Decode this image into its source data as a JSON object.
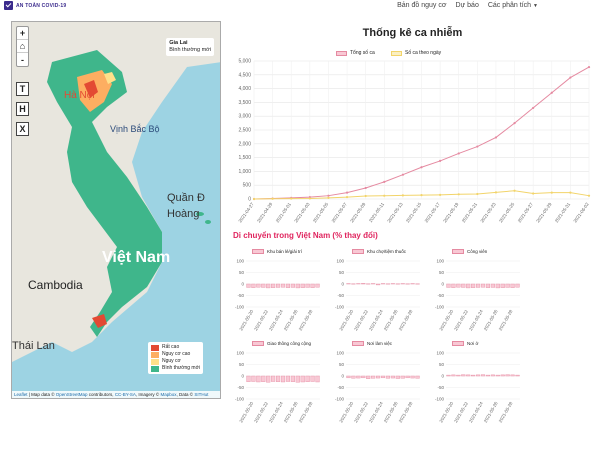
{
  "navbar": {
    "brand": "AN TOÀN COVID-19",
    "links": [
      "Bản đồ nguy cơ",
      "Dự báo",
      "Các phân tích"
    ]
  },
  "map": {
    "zoom_in": "+",
    "home": "⌂",
    "zoom_out": "-",
    "buttons": [
      "T",
      "H",
      "X"
    ],
    "info_title": "Gia Lai",
    "info_status": "Bình thường mới",
    "labels": {
      "hanoi": "Hà Nội",
      "gulf": "Vịnh Bắc Bộ",
      "paracel": "Quần Đ",
      "paracel2": "Hoàng",
      "vietnam": "Việt Nam",
      "cambodia": "Cambodia",
      "thailand": "Thái Lan"
    },
    "legend": [
      {
        "label": "Rất cao",
        "color": "#e34a33"
      },
      {
        "label": "Nguy cơ cao",
        "color": "#fdae61"
      },
      {
        "label": "Nguy cơ",
        "color": "#ffe08a"
      },
      {
        "label": "Bình thường mới",
        "color": "#3fb68b"
      }
    ],
    "attribution": {
      "leaflet": "Leaflet",
      "t1": " | Map data © ",
      "osm": "OpenStreetMap",
      "t2": " contributors, ",
      "cc": "CC-BY-SA",
      "t3": ", Imagery © ",
      "mapbox": "Mapbox",
      "t4": ", Data © ",
      "src": "SITHut"
    }
  },
  "main_title": "Thống kê ca nhiễm",
  "mobility_title": "Di chuyển trong Việt Nam (% thay đổi)",
  "chart_data": [
    {
      "type": "line",
      "title": "Thống kê ca nhiễm",
      "x": [
        "2021-04-27",
        "2021-04-29",
        "2021-05-01",
        "2021-05-03",
        "2021-05-05",
        "2021-05-07",
        "2021-05-09",
        "2021-05-11",
        "2021-05-13",
        "2021-05-15",
        "2021-05-17",
        "2021-05-19",
        "2021-05-21",
        "2021-05-23",
        "2021-05-25",
        "2021-05-27",
        "2021-05-29",
        "2021-05-31",
        "2021-06-02"
      ],
      "series": [
        {
          "name": "Tổng số ca",
          "color": "#e58aa1",
          "values": [
            0,
            20,
            40,
            70,
            120,
            230,
            400,
            620,
            880,
            1150,
            1380,
            1650,
            1900,
            2230,
            2750,
            3300,
            3850,
            4400,
            4780
          ]
        },
        {
          "name": "Số ca theo ngày",
          "color": "#f2d46a",
          "values": [
            0,
            10,
            15,
            20,
            40,
            70,
            110,
            120,
            130,
            140,
            150,
            170,
            180,
            240,
            300,
            200,
            230,
            230,
            120
          ]
        }
      ],
      "yticks": [
        "5,000",
        "4,500",
        "4,000",
        "3,500",
        "3,000",
        "2,500",
        "2,000",
        "1,500",
        "1,000",
        "500",
        "0"
      ],
      "xticks": [
        "2021-04-27",
        "2021-04-29",
        "2021-05-01",
        "2021-05-03",
        "2021-05-05",
        "2021-05-07",
        "2021-05-09",
        "2021-05-11",
        "2021-05-13",
        "2021-05-15",
        "2021-05-17",
        "2021-05-19",
        "2021-05-21",
        "2021-05-23",
        "2021-05-25",
        "2021-05-27",
        "2021-05-29",
        "2021-05-31",
        "2021-06-02"
      ],
      "ylim": [
        0,
        5000
      ]
    },
    {
      "type": "bar",
      "title": "Khu bán lẻ/giải trí",
      "xticks": [
        "2021-05-20",
        "2021-05-22",
        "2021-05-24",
        "2021-05-26",
        "2021-05-28"
      ],
      "yticks": [
        "100",
        "50",
        "0",
        "-50",
        "-100"
      ],
      "ylim": [
        -100,
        100
      ],
      "values": [
        -15,
        -16,
        -14,
        -15,
        -17,
        -16,
        -15,
        -14,
        -16,
        -15,
        -17,
        -16,
        -15,
        -16,
        -14
      ]
    },
    {
      "type": "bar",
      "title": "Khu chợ/tiệm thuốc",
      "xticks": [
        "2021-05-20",
        "2021-05-22",
        "2021-05-24",
        "2021-05-26",
        "2021-05-28"
      ],
      "yticks": [
        "100",
        "50",
        "0",
        "-50",
        "-100"
      ],
      "ylim": [
        -100,
        100
      ],
      "values": [
        2,
        1,
        2,
        3,
        1,
        2,
        -4,
        2,
        1,
        2,
        1,
        2,
        1,
        2,
        1
      ]
    },
    {
      "type": "bar",
      "title": "Công viên",
      "xticks": [
        "2021-05-20",
        "2021-05-22",
        "2021-05-24",
        "2021-05-26",
        "2021-05-28"
      ],
      "yticks": [
        "100",
        "50",
        "0",
        "-50",
        "-100"
      ],
      "ylim": [
        -100,
        100
      ],
      "values": [
        -15,
        -16,
        -14,
        -15,
        -17,
        -16,
        -15,
        -14,
        -16,
        -15,
        -17,
        -16,
        -15,
        -16,
        -14
      ]
    },
    {
      "type": "bar",
      "title": "Giao thông công cộng",
      "xticks": [
        "2021-05-20",
        "2021-05-22",
        "2021-05-24",
        "2021-05-26",
        "2021-05-28"
      ],
      "yticks": [
        "100",
        "50",
        "0",
        "-50",
        "-100"
      ],
      "ylim": [
        -100,
        100
      ],
      "values": [
        -25,
        -24,
        -26,
        -25,
        -27,
        -24,
        -25,
        -26,
        -24,
        -25,
        -27,
        -26,
        -25,
        -24,
        -26
      ]
    },
    {
      "type": "bar",
      "title": "Nơi làm việc",
      "xticks": [
        "2021-05-20",
        "2021-05-22",
        "2021-05-24",
        "2021-05-26",
        "2021-05-28"
      ],
      "yticks": [
        "100",
        "50",
        "0",
        "-50",
        "-100"
      ],
      "ylim": [
        -100,
        100
      ],
      "values": [
        -8,
        -10,
        -9,
        -8,
        -12,
        -10,
        -9,
        -8,
        -10,
        -9,
        -11,
        -10,
        -8,
        -9,
        -10
      ]
    },
    {
      "type": "bar",
      "title": "Nơi ở",
      "xticks": [
        "2021-05-20",
        "2021-05-22",
        "2021-05-24",
        "2021-05-26",
        "2021-05-28"
      ],
      "yticks": [
        "100",
        "50",
        "0",
        "-50",
        "-100"
      ],
      "ylim": [
        -100,
        100
      ],
      "values": [
        4,
        5,
        4,
        6,
        5,
        4,
        5,
        6,
        4,
        5,
        4,
        5,
        6,
        5,
        4
      ]
    }
  ]
}
